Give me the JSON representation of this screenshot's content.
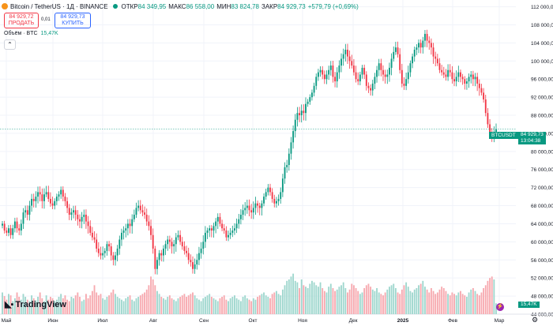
{
  "header": {
    "symbol": "Bitcoin / TetherUS · 1Д · BINANCE",
    "open_label": "ОТКР",
    "open": "84 349,95",
    "high_label": "МАКС",
    "high": "86 558,00",
    "low_label": "МИН",
    "low": "83 824,78",
    "close_label": "ЗАКР",
    "close": "84 929,73",
    "change": "+579,79 (+0,69%)"
  },
  "trade": {
    "sell_price": "84 929,72",
    "sell_label": "ПРОДАТЬ",
    "spread": "0,01",
    "buy_price": "84 929,73",
    "buy_label": "КУПИТЬ"
  },
  "volume": {
    "label": "Объём · BTC",
    "value": "15,47K"
  },
  "price_tag": {
    "symbol": "BTCUSDT",
    "price": "84 929,73",
    "countdown": "13:04:38"
  },
  "brand": "TradingView",
  "colors": {
    "up": "#089981",
    "down": "#f23645",
    "up_vol": "#9fd7ce",
    "down_vol": "#f7a9af"
  },
  "chart_data": {
    "type": "candlestick",
    "y_ticks": [
      "112 000,00",
      "108 000,00",
      "104 000,00",
      "100 000,00",
      "96 000,00",
      "92 000,00",
      "88 000,00",
      "84 000,00",
      "80 000,00",
      "76 000,00",
      "72 000,00",
      "68 000,00",
      "64 000,00",
      "60 000,00",
      "56 000,00",
      "52 000,00",
      "48 000,00",
      "44 000,00"
    ],
    "ylim": [
      44000,
      113500
    ],
    "x_ticks": [
      "Май",
      "Июн",
      "Июл",
      "Авг",
      "Сен",
      "Окт",
      "Ноя",
      "Дек",
      "2025",
      "Фев",
      "Мар"
    ],
    "grid": true,
    "series_close": [
      64000,
      62500,
      62000,
      63000,
      61500,
      63000,
      64500,
      63000,
      62500,
      64000,
      66500,
      67000,
      66000,
      68000,
      69500,
      69000,
      70000,
      71000,
      70500,
      69000,
      70500,
      71000,
      69500,
      68500,
      68000,
      69000,
      70000,
      70500,
      71500,
      70000,
      69000,
      67500,
      66000,
      66500,
      67000,
      66000,
      65000,
      64500,
      65500,
      66000,
      64500,
      63500,
      62000,
      61000,
      60500,
      58500,
      57500,
      57000,
      57500,
      58000,
      59500,
      59000,
      57000,
      56000,
      57000,
      58500,
      60500,
      62000,
      62500,
      63000,
      64000,
      63500,
      65000,
      66000,
      67500,
      68000,
      67000,
      66500,
      66000,
      64500,
      63500,
      61500,
      58500,
      54000,
      56000,
      57500,
      57000,
      58500,
      59500,
      60500,
      60000,
      59000,
      59500,
      61000,
      61500,
      60000,
      59000,
      58000,
      57500,
      56000,
      55500,
      54000,
      55000,
      56000,
      57500,
      58500,
      60000,
      62000,
      62500,
      63000,
      62500,
      63500,
      64500,
      65500,
      64000,
      63000,
      62500,
      61000,
      61500,
      62000,
      62500,
      63000,
      64000,
      65000,
      66000,
      67000,
      67500,
      68000,
      67000,
      66500,
      67500,
      68500,
      68000,
      67500,
      68500,
      70000,
      71000,
      72000,
      71000,
      69500,
      68500,
      69000,
      69500,
      71000,
      74000,
      76500,
      77000,
      79500,
      82000,
      84500,
      87000,
      88500,
      88000,
      89000,
      88500,
      90500,
      91000,
      92000,
      93000,
      94500,
      96500,
      97500,
      98000,
      97000,
      96000,
      97000,
      98000,
      99000,
      96500,
      95500,
      97500,
      99000,
      100500,
      101500,
      102500,
      101000,
      100000,
      99000,
      97500,
      96000,
      95500,
      97000,
      98500,
      97000,
      94500,
      94000,
      93500,
      95000,
      96500,
      98000,
      99500,
      98000,
      97000,
      96500,
      97000,
      98500,
      100500,
      102000,
      103000,
      101500,
      98000,
      95000,
      94500,
      96000,
      97500,
      99500,
      101000,
      102500,
      103000,
      104000,
      103000,
      104500,
      106000,
      104500,
      104000,
      103000,
      101000,
      100500,
      99500,
      98000,
      97500,
      97000,
      96500,
      98000,
      97500,
      96000,
      95500,
      96500,
      97500,
      96500,
      96000,
      95000,
      95500,
      96500,
      97000,
      96000,
      96500,
      95000,
      94000,
      93000,
      91500,
      88500,
      86000,
      84000,
      83000,
      84349,
      84929
    ],
    "series_volume_k": [
      30,
      25,
      20,
      28,
      26,
      18,
      22,
      30,
      24,
      20,
      28,
      24,
      20,
      18,
      26,
      22,
      19,
      24,
      30,
      22,
      18,
      26,
      20,
      24,
      22,
      18,
      20,
      24,
      28,
      22,
      26,
      20,
      18,
      24,
      22,
      26,
      30,
      24,
      18,
      20,
      28,
      22,
      26,
      32,
      40,
      30,
      26,
      28,
      22,
      20,
      24,
      26,
      30,
      34,
      28,
      24,
      22,
      20,
      18,
      22,
      24,
      26,
      20,
      18,
      22,
      24,
      26,
      28,
      30,
      34,
      40,
      52,
      48,
      40,
      32,
      28,
      24,
      22,
      20,
      24,
      26,
      22,
      20,
      18,
      22,
      24,
      26,
      28,
      24,
      26,
      28,
      30,
      26,
      22,
      20,
      18,
      22,
      24,
      26,
      28,
      24,
      22,
      20,
      18,
      22,
      24,
      26,
      20,
      18,
      22,
      24,
      26,
      22,
      20,
      18,
      24,
      26,
      22,
      20,
      18,
      22,
      20,
      24,
      26,
      28,
      30,
      26,
      24,
      22,
      28,
      30,
      32,
      28,
      26,
      34,
      40,
      46,
      48,
      52,
      56,
      46,
      44,
      36,
      48,
      40,
      38,
      36,
      42,
      46,
      44,
      40,
      38,
      44,
      36,
      32,
      30,
      38,
      42,
      36,
      32,
      34,
      38,
      40,
      44,
      36,
      30,
      34,
      42,
      40,
      36,
      32,
      28,
      30,
      36,
      40,
      42,
      38,
      34,
      32,
      36,
      30,
      28,
      26,
      30,
      34,
      38,
      40,
      42,
      36,
      30,
      28,
      34,
      40,
      44,
      38,
      32,
      30,
      34,
      36,
      40,
      42,
      46,
      38,
      34,
      30,
      36,
      32,
      28,
      30,
      34,
      38,
      36,
      32,
      28,
      26,
      30,
      28,
      26,
      30,
      32,
      28,
      26,
      24,
      30,
      34,
      36,
      32,
      28,
      26,
      30,
      36,
      40,
      46,
      50,
      52,
      48,
      15
    ]
  }
}
